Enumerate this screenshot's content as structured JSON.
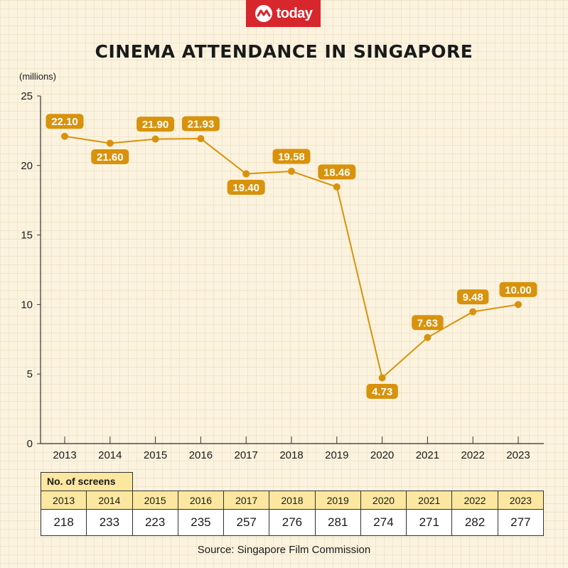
{
  "brand": {
    "name": "today",
    "color": "#d8262d"
  },
  "chart_data": {
    "type": "line",
    "title": "CINEMA ATTENDANCE IN SINGAPORE",
    "ylabel": "(millions)",
    "xlabel": "",
    "categories": [
      "2013",
      "2014",
      "2015",
      "2016",
      "2017",
      "2018",
      "2019",
      "2020",
      "2021",
      "2022",
      "2023"
    ],
    "values": [
      22.1,
      21.6,
      21.9,
      21.93,
      19.4,
      19.58,
      18.46,
      4.73,
      7.63,
      9.48,
      10.0
    ],
    "value_labels": [
      "22.10",
      "21.60",
      "21.90",
      "21.93",
      "19.40",
      "19.58",
      "18.46",
      "4.73",
      "7.63",
      "9.48",
      "10.00"
    ],
    "ylim": [
      0,
      25
    ],
    "yticks": [
      "0",
      "5",
      "10",
      "15",
      "20",
      "25"
    ],
    "grid": false,
    "line_color": "#d8920c"
  },
  "screens_table": {
    "header": "No. of screens",
    "years": [
      "2013",
      "2014",
      "2015",
      "2016",
      "2017",
      "2018",
      "2019",
      "2020",
      "2021",
      "2022",
      "2023"
    ],
    "counts": [
      "218",
      "233",
      "223",
      "235",
      "257",
      "276",
      "281",
      "274",
      "271",
      "282",
      "277"
    ]
  },
  "source": "Source: Singapore Film Commission"
}
